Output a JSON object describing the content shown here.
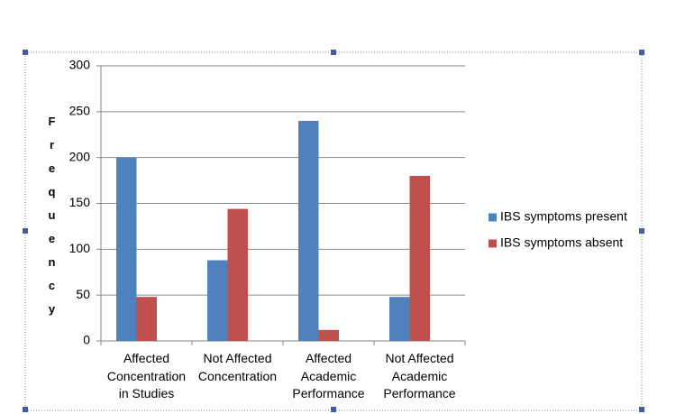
{
  "chart_data": {
    "type": "bar",
    "y_label": "Frequency",
    "categories": [
      "Affected Concentration in Studies",
      "Not Affected Concentration",
      "Affected Academic Performance",
      "Not Affected Academic Performance"
    ],
    "series": [
      {
        "name": "IBS symptoms present",
        "color": "#4f81bd",
        "values": [
          200,
          88,
          240,
          48
        ]
      },
      {
        "name": "IBS symptoms absent",
        "color": "#c0504d",
        "values": [
          48,
          144,
          12,
          180
        ]
      }
    ],
    "ylim": [
      0,
      300
    ],
    "yticks": [
      0,
      50,
      100,
      150,
      200,
      250,
      300
    ],
    "grid": true,
    "legend": "right"
  }
}
